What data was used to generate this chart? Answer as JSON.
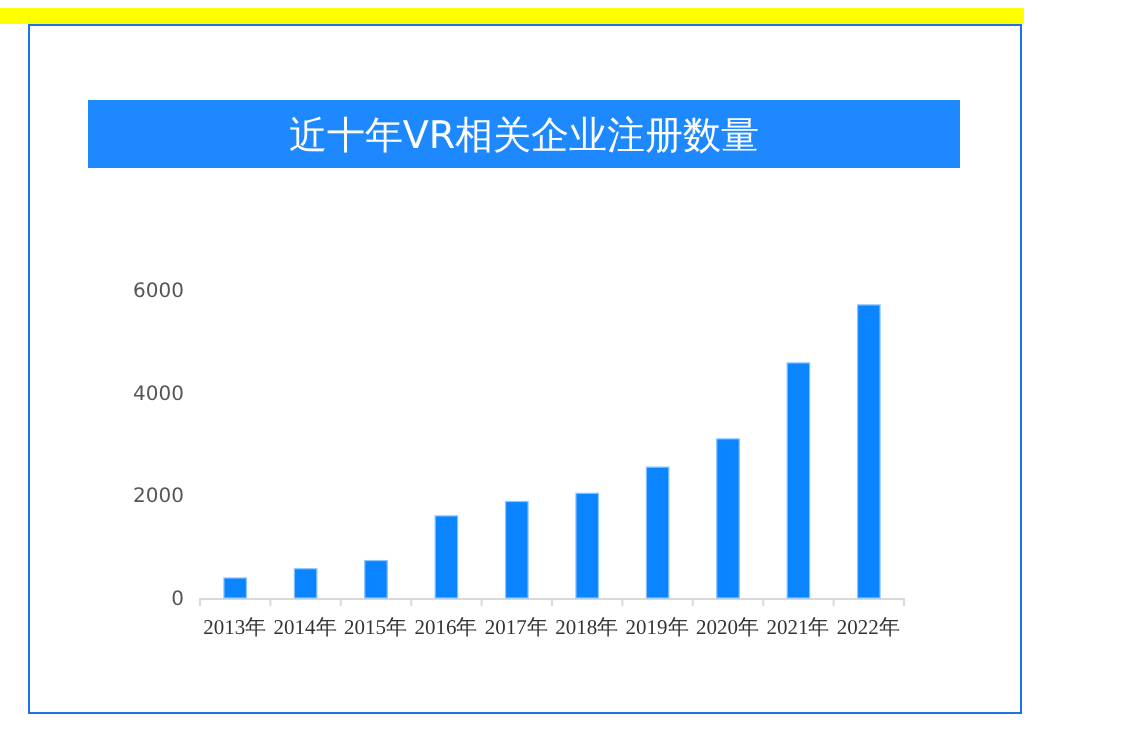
{
  "chart_data": {
    "type": "bar",
    "title": "近十年VR相关企业注册数量",
    "categories": [
      "2013年",
      "2014年",
      "2015年",
      "2016年",
      "2017年",
      "2018年",
      "2019年",
      "2020年",
      "2021年",
      "2022年"
    ],
    "values": [
      390,
      570,
      730,
      1600,
      1880,
      2040,
      2550,
      3100,
      4580,
      5710
    ],
    "color": "#0a84ff",
    "ylim": [
      0,
      6000
    ],
    "yticks": [
      0,
      2000,
      4000,
      6000
    ]
  }
}
